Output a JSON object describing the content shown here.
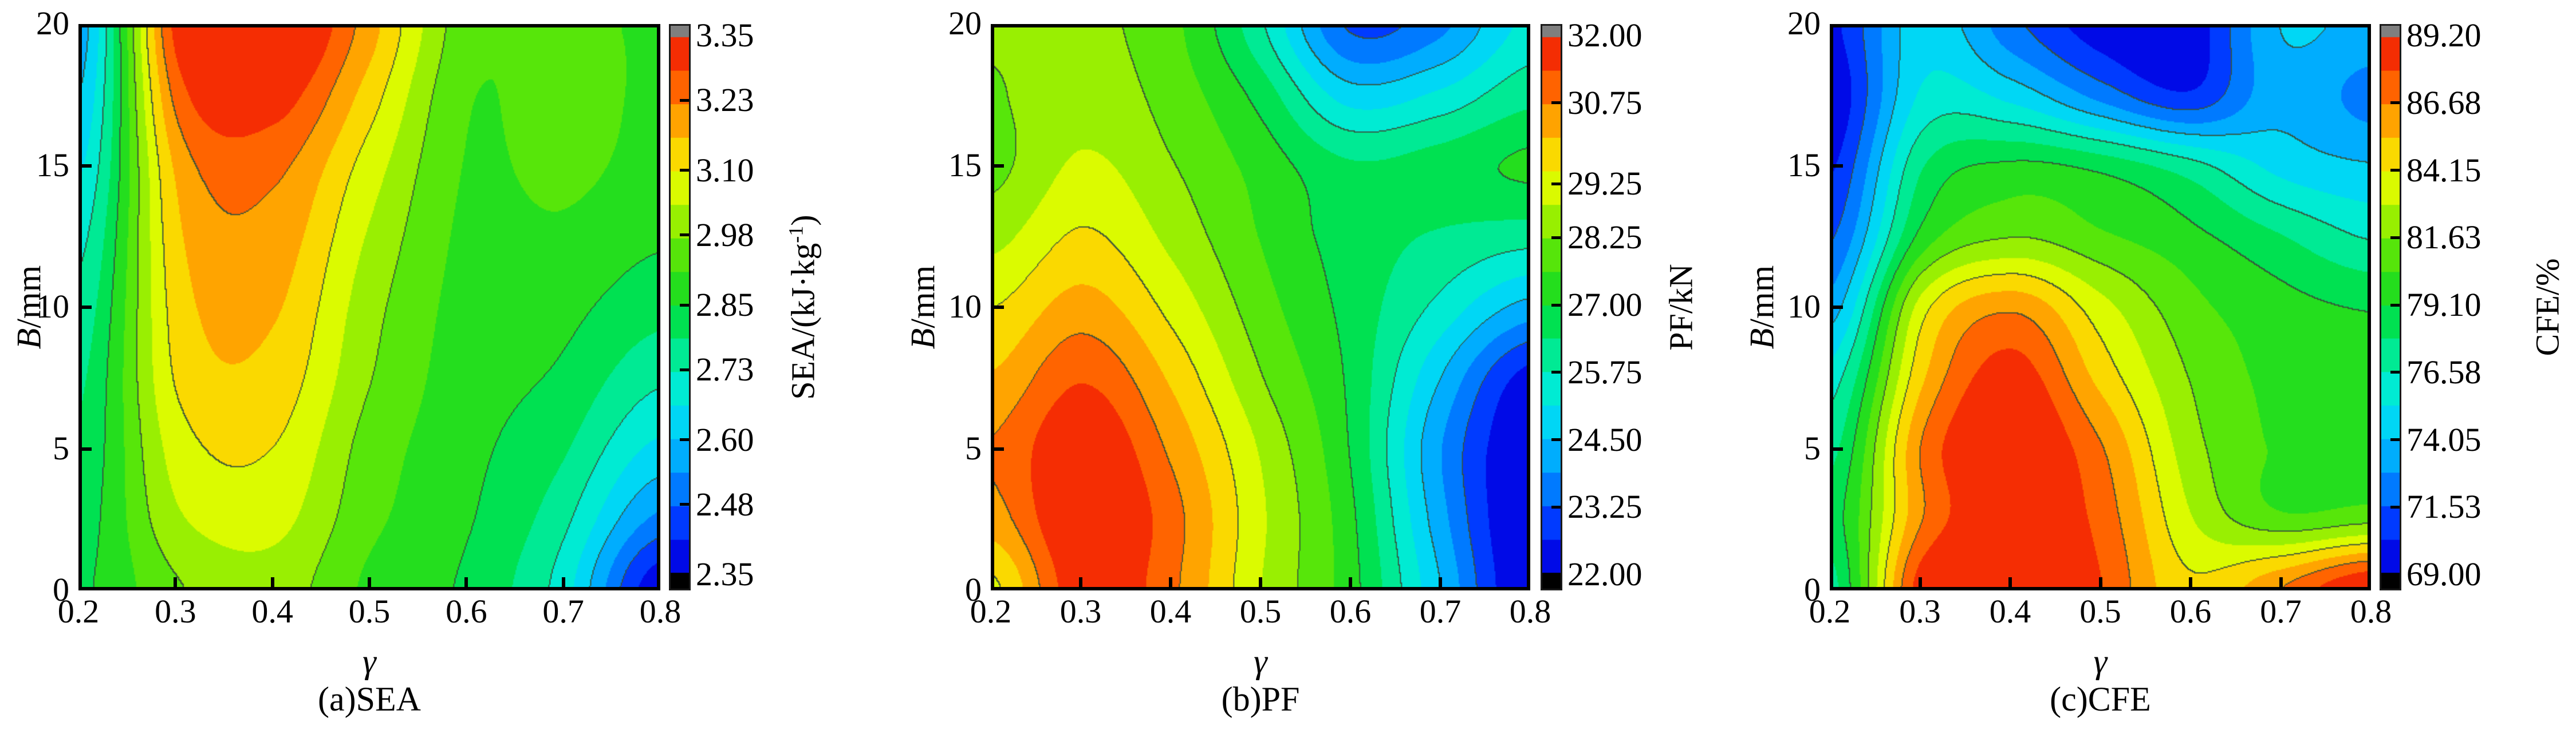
{
  "figure": {
    "background": "#ffffff",
    "n_panels": 3
  },
  "style": {
    "n_bands": 16,
    "contour_line_color": "#37503C",
    "over_color": "#7F7F7F",
    "under_color": "#000000",
    "axis_color": "#000000",
    "colormap_stops": [
      [
        0.0,
        "#0000CD"
      ],
      [
        0.06,
        "#0014FF"
      ],
      [
        0.13,
        "#0064FF"
      ],
      [
        0.2,
        "#00A0FF"
      ],
      [
        0.27,
        "#00D2FA"
      ],
      [
        0.33,
        "#00EBE1"
      ],
      [
        0.4,
        "#00EB9B"
      ],
      [
        0.47,
        "#00E150"
      ],
      [
        0.53,
        "#23DE1E"
      ],
      [
        0.61,
        "#64E805"
      ],
      [
        0.68,
        "#B4F300"
      ],
      [
        0.74,
        "#F0FF00"
      ],
      [
        0.8,
        "#FFC800"
      ],
      [
        0.86,
        "#FF9600"
      ],
      [
        0.92,
        "#FF5500"
      ],
      [
        1.0,
        "#EE1405"
      ]
    ]
  },
  "chart_data": [
    {
      "id": "sea",
      "type": "heatmap",
      "subtype": "filled-contour",
      "caption": "(a)SEA",
      "xlabel": "γ",
      "ylabel_italic": "B",
      "ylabel_unit": "/mm",
      "x_ticks": [
        "0.2",
        "0.3",
        "0.4",
        "0.5",
        "0.6",
        "0.7",
        "0.8"
      ],
      "y_ticks": [
        "0",
        "5",
        "10",
        "15",
        "20"
      ],
      "x_range": [
        0.2,
        0.8
      ],
      "y_range": [
        0,
        20
      ],
      "colorbar": {
        "title_pre": "SEA/(kJ·kg",
        "title_sup": "-1",
        "title_post": ")",
        "ticks": [
          "3.35",
          "3.23",
          "3.10",
          "2.98",
          "2.85",
          "2.73",
          "2.60",
          "2.48",
          "2.35"
        ],
        "vmin": 2.35,
        "vmax": 3.35
      },
      "grid": {
        "x": [
          0.2,
          0.3,
          0.4,
          0.5,
          0.6,
          0.7,
          0.8
        ],
        "y": [
          0,
          2.5,
          5,
          7.5,
          10,
          12.5,
          15,
          17.5,
          20
        ],
        "z": [
          [
            2.84,
            2.97,
            3.01,
            2.9,
            2.84,
            2.7,
            2.37
          ],
          [
            2.82,
            3.03,
            3.06,
            2.93,
            2.86,
            2.75,
            2.53
          ],
          [
            2.8,
            3.07,
            3.1,
            2.95,
            2.87,
            2.8,
            2.65
          ],
          [
            2.78,
            3.11,
            3.14,
            2.98,
            2.88,
            2.84,
            2.74
          ],
          [
            2.75,
            3.13,
            3.17,
            3.0,
            2.89,
            2.87,
            2.81
          ],
          [
            2.71,
            3.15,
            3.2,
            3.03,
            2.9,
            2.9,
            2.86
          ],
          [
            2.66,
            3.18,
            3.24,
            3.07,
            2.91,
            2.93,
            2.89
          ],
          [
            2.61,
            3.25,
            3.32,
            3.13,
            2.92,
            2.94,
            2.9
          ],
          [
            2.57,
            3.32,
            3.4,
            3.19,
            2.94,
            2.92,
            2.91
          ]
        ]
      }
    },
    {
      "id": "pf",
      "type": "heatmap",
      "subtype": "filled-contour",
      "caption": "(b)PF",
      "xlabel": "γ",
      "ylabel_italic": "B",
      "ylabel_unit": "/mm",
      "x_ticks": [
        "0.2",
        "0.3",
        "0.4",
        "0.5",
        "0.6",
        "0.7",
        "0.8"
      ],
      "y_ticks": [
        "0",
        "5",
        "10",
        "15",
        "20"
      ],
      "x_range": [
        0.2,
        0.8
      ],
      "y_range": [
        0,
        20
      ],
      "colorbar": {
        "title_pre": "PF/kN",
        "title_sup": "",
        "title_post": "",
        "ticks": [
          "32.00",
          "30.75",
          "29.25",
          "28.25",
          "27.00",
          "25.75",
          "24.50",
          "23.25",
          "22.00"
        ],
        "vmin": 22.0,
        "vmax": 32.0
      },
      "grid": {
        "x": [
          0.2,
          0.3,
          0.4,
          0.5,
          0.6,
          0.7,
          0.8
        ],
        "y": [
          0,
          2.5,
          5,
          7.5,
          10,
          12.5,
          15,
          17.5,
          20
        ],
        "z": [
          [
            29.4,
            31.9,
            30.9,
            28.9,
            27.3,
            24.6,
            21.9
          ],
          [
            30.5,
            32.2,
            31.0,
            29.0,
            27.2,
            24.2,
            21.8
          ],
          [
            30.8,
            32.0,
            30.6,
            28.8,
            27.0,
            24.0,
            21.9
          ],
          [
            30.2,
            31.3,
            30.0,
            28.3,
            26.9,
            24.6,
            22.4
          ],
          [
            29.5,
            30.4,
            29.3,
            27.9,
            26.8,
            25.6,
            24.3
          ],
          [
            28.7,
            29.6,
            28.7,
            27.6,
            26.7,
            26.3,
            26.0
          ],
          [
            28.1,
            29.0,
            28.3,
            27.4,
            26.5,
            26.7,
            27.1
          ],
          [
            28.2,
            28.6,
            28.0,
            26.8,
            24.9,
            25.3,
            26.2
          ],
          [
            28.3,
            28.4,
            27.8,
            25.9,
            23.2,
            23.7,
            25.3
          ]
        ]
      }
    },
    {
      "id": "cfe",
      "type": "heatmap",
      "subtype": "filled-contour",
      "caption": "(c)CFE",
      "xlabel": "γ",
      "ylabel_italic": "B",
      "ylabel_unit": "/mm",
      "x_ticks": [
        "0.2",
        "0.3",
        "0.4",
        "0.5",
        "0.6",
        "0.7",
        "0.8"
      ],
      "y_ticks": [
        "0",
        "5",
        "10",
        "15",
        "20"
      ],
      "x_range": [
        0.2,
        0.8
      ],
      "y_range": [
        0,
        20
      ],
      "colorbar": {
        "title_pre": "CFE/%",
        "title_sup": "",
        "title_post": "",
        "ticks": [
          "89.20",
          "86.68",
          "84.15",
          "81.63",
          "79.10",
          "76.58",
          "74.05",
          "71.53",
          "69.00"
        ],
        "vmin": 69.0,
        "vmax": 89.2
      },
      "grid": {
        "x": [
          0.2,
          0.3,
          0.4,
          0.5,
          0.6,
          0.7,
          0.8
        ],
        "y": [
          0,
          2.5,
          5,
          7.5,
          10,
          12.5,
          15,
          17.5,
          20
        ],
        "z": [
          [
            77.5,
            88.8,
            89.6,
            88.0,
            84.4,
            86.5,
            89.3
          ],
          [
            78.5,
            86.6,
            89.3,
            87.5,
            83.0,
            80.6,
            81.0
          ],
          [
            77.5,
            86.8,
            89.4,
            86.8,
            82.2,
            80.2,
            79.8
          ],
          [
            76.0,
            85.2,
            88.6,
            85.0,
            81.6,
            80.0,
            79.6
          ],
          [
            73.5,
            83.6,
            86.4,
            83.4,
            80.8,
            79.6,
            79.0
          ],
          [
            71.5,
            79.6,
            81.6,
            80.6,
            79.5,
            78.0,
            76.5
          ],
          [
            70.2,
            77.8,
            79.4,
            78.8,
            77.2,
            75.0,
            74.2
          ],
          [
            69.3,
            75.6,
            75.0,
            72.5,
            70.6,
            73.6,
            72.4
          ],
          [
            70.0,
            74.8,
            72.0,
            69.6,
            69.4,
            74.0,
            73.6
          ]
        ]
      }
    }
  ]
}
